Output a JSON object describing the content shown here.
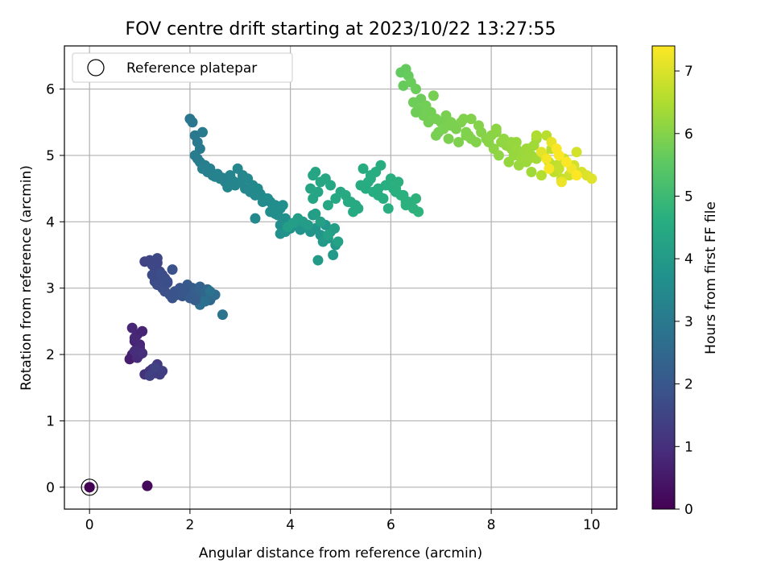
{
  "chart_data": {
    "type": "scatter",
    "title": "FOV centre drift starting at 2023/10/22 13:27:55",
    "xlabel": "Angular distance from reference (arcmin)",
    "ylabel": "Rotation from reference (arcmin)",
    "xlim": [
      -0.5,
      10.5
    ],
    "ylim": [
      -0.33,
      6.65
    ],
    "xticks": [
      "0",
      "2",
      "4",
      "6",
      "8",
      "10"
    ],
    "yticks": [
      "0",
      "1",
      "2",
      "3",
      "4",
      "5",
      "6"
    ],
    "grid": true,
    "legend": {
      "placement": "upper-left",
      "entries": [
        "Reference platepar"
      ]
    },
    "colorbar": {
      "label": "Hours from first FF file",
      "range": [
        0,
        7.4
      ],
      "ticks": [
        "0",
        "1",
        "2",
        "3",
        "4",
        "5",
        "6",
        "7"
      ],
      "colormap": "viridis"
    },
    "reference_point": {
      "x": 0,
      "y": 0,
      "label": "Reference platepar"
    },
    "series": [
      {
        "x": [
          0.0,
          0.0,
          1.15,
          1.15
        ],
        "y": [
          0.0,
          0.0,
          0.02,
          0.02
        ],
        "c": [
          0.0,
          0.02,
          0.15,
          0.18
        ]
      },
      {
        "x": [
          0.8,
          0.85,
          0.9,
          0.95,
          1.0,
          0.9,
          0.95,
          1.05,
          1.0,
          0.85,
          0.9,
          1.0,
          0.95,
          0.9,
          1.05,
          1.1,
          1.2,
          1.25,
          1.3,
          1.35,
          1.4,
          1.45,
          1.2,
          1.3
        ],
        "y": [
          1.93,
          2.0,
          2.05,
          2.1,
          2.0,
          2.2,
          2.3,
          2.35,
          2.15,
          2.4,
          2.25,
          2.1,
          1.95,
          2.05,
          2.02,
          1.7,
          1.75,
          1.78,
          1.72,
          1.85,
          1.7,
          1.75,
          1.68,
          1.8
        ],
        "c": [
          0.6,
          0.62,
          0.65,
          0.67,
          0.7,
          0.72,
          0.74,
          0.76,
          0.78,
          0.8,
          0.82,
          0.85,
          0.9,
          0.95,
          1.0,
          1.05,
          1.1,
          1.15,
          1.2,
          1.25,
          1.3,
          1.35,
          1.4,
          1.45
        ]
      },
      {
        "x": [
          1.1,
          1.2,
          1.25,
          1.3,
          1.35,
          1.4,
          1.45,
          1.5,
          1.3,
          1.35,
          1.4,
          1.45,
          1.5,
          1.55,
          1.6,
          1.65,
          1.7,
          1.75,
          1.8,
          1.85,
          1.9,
          1.95,
          2.0,
          2.05,
          2.1,
          2.15,
          2.2,
          2.25,
          2.3,
          2.35,
          2.4,
          2.45,
          2.5,
          2.2,
          2.3,
          2.4,
          2.65,
          1.35,
          1.65,
          1.25,
          1.55,
          1.9,
          2.1
        ],
        "y": [
          3.4,
          3.42,
          3.35,
          3.3,
          3.45,
          3.25,
          3.2,
          3.15,
          3.1,
          3.05,
          3.2,
          3.0,
          2.95,
          3.1,
          2.9,
          2.85,
          2.95,
          2.9,
          3.0,
          2.88,
          2.92,
          3.05,
          2.85,
          3.0,
          2.95,
          2.9,
          3.02,
          2.85,
          2.92,
          2.98,
          2.82,
          2.88,
          2.9,
          2.75,
          2.8,
          2.95,
          2.6,
          3.38,
          3.28,
          3.2,
          3.08,
          2.98,
          2.82
        ],
        "c": [
          1.5,
          1.52,
          1.55,
          1.58,
          1.6,
          1.62,
          1.65,
          1.68,
          1.7,
          1.72,
          1.75,
          1.78,
          1.8,
          1.82,
          1.85,
          1.88,
          1.9,
          1.92,
          1.95,
          1.98,
          2.0,
          2.05,
          2.1,
          2.15,
          2.2,
          2.25,
          2.3,
          2.35,
          2.4,
          2.45,
          2.5,
          2.55,
          2.6,
          2.65,
          2.7,
          2.75,
          2.8,
          1.56,
          1.86,
          1.66,
          1.76,
          2.02,
          2.18
        ]
      },
      {
        "x": [
          2.0,
          2.05,
          2.1,
          2.15,
          2.2,
          2.25,
          2.1,
          2.15,
          2.2,
          2.3,
          2.25,
          2.35,
          2.4,
          2.45,
          2.5,
          2.6,
          2.7,
          2.8,
          2.9,
          3.0,
          3.1,
          3.2,
          3.3,
          3.4,
          3.5,
          3.6,
          3.7,
          3.8,
          2.95,
          3.05,
          3.15,
          3.25,
          3.35,
          3.45,
          3.55,
          3.65,
          3.75,
          3.85,
          2.75,
          2.85,
          3.6,
          3.9,
          3.3,
          2.55,
          2.65,
          3.8,
          3.7
        ],
        "y": [
          5.55,
          5.5,
          5.3,
          5.2,
          5.1,
          5.35,
          5.0,
          4.95,
          4.9,
          4.85,
          4.8,
          4.75,
          4.8,
          4.7,
          4.68,
          4.65,
          4.6,
          4.7,
          4.55,
          4.6,
          4.5,
          4.45,
          4.4,
          4.42,
          4.35,
          4.3,
          4.25,
          4.2,
          4.8,
          4.7,
          4.65,
          4.55,
          4.5,
          4.3,
          4.35,
          4.2,
          4.1,
          4.25,
          4.52,
          4.62,
          4.15,
          4.05,
          4.05,
          4.72,
          4.66,
          3.95,
          4.12
        ],
        "c": [
          2.9,
          2.92,
          2.95,
          2.98,
          3.0,
          3.02,
          3.05,
          3.08,
          3.1,
          3.12,
          3.15,
          3.18,
          3.2,
          3.22,
          3.25,
          3.28,
          3.3,
          3.32,
          3.35,
          3.38,
          3.4,
          3.42,
          3.45,
          3.48,
          3.5,
          3.52,
          3.55,
          3.58,
          3.36,
          3.4,
          3.44,
          3.47,
          3.5,
          3.53,
          3.56,
          3.6,
          3.62,
          3.65,
          3.33,
          3.34,
          3.6,
          3.66,
          3.46,
          3.26,
          3.29,
          3.64,
          3.61
        ]
      },
      {
        "x": [
          3.8,
          3.9,
          4.0,
          4.1,
          4.2,
          4.3,
          4.4,
          4.5,
          4.6,
          4.7,
          4.8,
          4.9,
          4.85,
          4.75,
          4.65,
          4.55,
          4.45,
          4.35,
          4.25,
          4.15,
          4.05,
          3.95,
          4.5,
          4.88,
          4.6,
          4.75,
          4.95
        ],
        "y": [
          3.82,
          3.85,
          3.9,
          3.95,
          3.88,
          3.92,
          3.85,
          3.9,
          3.8,
          3.95,
          3.85,
          3.65,
          3.5,
          3.75,
          3.7,
          3.42,
          4.1,
          3.95,
          4.0,
          4.05,
          3.98,
          3.92,
          4.12,
          3.9,
          4.0,
          3.8,
          3.7
        ],
        "c": [
          3.7,
          3.72,
          3.74,
          3.76,
          3.78,
          3.8,
          3.82,
          3.84,
          3.86,
          3.88,
          3.9,
          3.92,
          3.94,
          3.96,
          3.98,
          4.0,
          4.02,
          4.04,
          4.06,
          4.08,
          4.1,
          4.12,
          4.14,
          4.16,
          4.18,
          4.2,
          4.22
        ]
      },
      {
        "x": [
          4.4,
          4.45,
          4.5,
          4.6,
          4.7,
          4.8,
          4.9,
          5.0,
          5.1,
          5.2,
          5.3,
          5.4,
          5.5,
          5.6,
          5.7,
          5.8,
          5.9,
          6.0,
          6.1,
          6.2,
          6.3,
          6.4,
          6.5,
          6.55,
          5.45,
          5.55,
          5.65,
          5.75,
          5.85,
          5.95,
          6.05,
          6.15,
          6.25,
          6.35,
          6.45,
          5.35,
          5.25,
          5.15,
          4.45,
          4.55,
          4.75,
          5.6,
          5.75,
          6.1,
          6.3
        ],
        "y": [
          4.5,
          4.7,
          4.75,
          4.6,
          4.65,
          4.55,
          4.35,
          4.45,
          4.4,
          4.3,
          4.25,
          4.55,
          4.5,
          4.7,
          4.75,
          4.85,
          4.55,
          4.65,
          4.5,
          4.4,
          4.3,
          4.25,
          4.35,
          4.15,
          4.8,
          4.6,
          4.45,
          4.5,
          4.35,
          4.2,
          4.5,
          4.6,
          4.4,
          4.3,
          4.2,
          4.2,
          4.15,
          4.3,
          4.35,
          4.45,
          4.25,
          4.65,
          4.4,
          4.45,
          4.25
        ],
        "c": [
          4.3,
          4.32,
          4.34,
          4.36,
          4.38,
          4.4,
          4.42,
          4.44,
          4.46,
          4.48,
          4.5,
          4.52,
          4.54,
          4.56,
          4.58,
          4.6,
          4.62,
          4.64,
          4.66,
          4.68,
          4.7,
          4.72,
          4.74,
          4.76,
          4.53,
          4.55,
          4.57,
          4.59,
          4.61,
          4.63,
          4.65,
          4.67,
          4.69,
          4.71,
          4.73,
          4.51,
          4.49,
          4.47,
          4.33,
          4.35,
          4.39,
          4.56,
          4.59,
          4.66,
          4.7
        ]
      },
      {
        "x": [
          6.2,
          6.3,
          6.35,
          6.25,
          6.4,
          6.5,
          6.6,
          6.45,
          6.55,
          6.7,
          6.8,
          6.9,
          7.0,
          7.1,
          7.2,
          7.3,
          7.4,
          7.5,
          7.6,
          7.7,
          6.95,
          7.05,
          7.15,
          7.25,
          7.35,
          7.45,
          7.55,
          6.65,
          6.75,
          6.85,
          7.5,
          7.6,
          7.75,
          6.5,
          6.9,
          7.2
        ],
        "y": [
          6.25,
          6.3,
          6.2,
          6.05,
          6.1,
          6.0,
          5.85,
          5.8,
          5.7,
          5.75,
          5.65,
          5.55,
          5.5,
          5.6,
          5.45,
          5.4,
          5.5,
          5.3,
          5.55,
          5.2,
          5.35,
          5.4,
          5.25,
          5.45,
          5.2,
          5.55,
          5.3,
          5.6,
          5.5,
          5.9,
          5.35,
          5.25,
          5.45,
          5.65,
          5.3,
          5.5
        ],
        "c": [
          5.6,
          5.62,
          5.64,
          5.66,
          5.68,
          5.7,
          5.72,
          5.74,
          5.76,
          5.78,
          5.8,
          5.82,
          5.84,
          5.86,
          5.88,
          5.9,
          5.92,
          5.94,
          5.96,
          5.98,
          5.85,
          5.87,
          5.89,
          5.91,
          5.93,
          5.95,
          5.97,
          5.79,
          5.81,
          5.83,
          5.95,
          5.97,
          6.0,
          5.75,
          5.85,
          5.9
        ]
      },
      {
        "x": [
          7.8,
          7.9,
          8.0,
          8.1,
          8.2,
          8.3,
          8.4,
          8.5,
          8.6,
          8.7,
          8.8,
          8.9,
          8.05,
          8.15,
          8.25,
          8.35,
          8.45,
          8.55,
          8.65,
          8.75,
          8.85,
          8.4,
          8.5,
          8.6,
          8.7,
          8.8,
          7.95,
          8.1,
          8.75,
          8.9
        ],
        "y": [
          5.35,
          5.25,
          5.3,
          5.4,
          5.2,
          5.15,
          5.1,
          5.2,
          5.05,
          5.1,
          5.0,
          5.25,
          5.1,
          5.0,
          5.25,
          4.9,
          5.0,
          4.85,
          5.05,
          4.95,
          5.15,
          5.2,
          5.1,
          4.95,
          4.9,
          4.75,
          5.2,
          5.35,
          5.1,
          4.95
        ],
        "c": [
          6.0,
          6.03,
          6.06,
          6.09,
          6.12,
          6.15,
          6.18,
          6.21,
          6.24,
          6.27,
          6.3,
          6.33,
          6.1,
          6.13,
          6.16,
          6.19,
          6.22,
          6.25,
          6.28,
          6.31,
          6.34,
          6.2,
          6.23,
          6.26,
          6.29,
          6.32,
          6.05,
          6.1,
          6.3,
          6.35
        ]
      },
      {
        "x": [
          8.9,
          9.0,
          9.1,
          9.2,
          9.3,
          9.4,
          9.5,
          9.6,
          9.7,
          9.8,
          9.9,
          10.0,
          9.05,
          9.15,
          9.25,
          9.35,
          9.45,
          9.55,
          9.65,
          9.0,
          9.2,
          9.4,
          9.6,
          9.1,
          9.3,
          9.5,
          9.7,
          9.15,
          9.35
        ],
        "y": [
          5.3,
          4.7,
          5.3,
          5.1,
          4.85,
          4.65,
          4.9,
          4.75,
          5.05,
          4.75,
          4.7,
          4.65,
          5.0,
          4.9,
          4.75,
          4.8,
          4.95,
          4.7,
          4.85,
          5.05,
          5.2,
          4.6,
          4.8,
          4.95,
          5.1,
          4.9,
          4.7,
          4.8,
          5.0
        ],
        "c": [
          6.5,
          6.55,
          6.6,
          6.65,
          6.7,
          6.75,
          6.8,
          6.85,
          6.9,
          6.95,
          7.0,
          7.05,
          6.6,
          6.65,
          6.7,
          6.75,
          6.8,
          6.85,
          6.9,
          7.1,
          7.15,
          7.2,
          7.25,
          7.3,
          7.35,
          7.38,
          7.4,
          7.32,
          7.36
        ]
      }
    ]
  }
}
